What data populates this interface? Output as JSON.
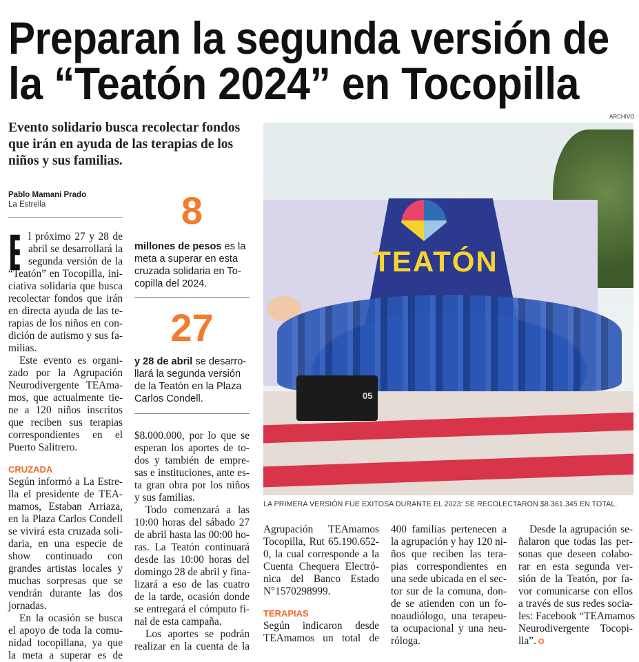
{
  "headline": {
    "line1": "Preparan la segunda versión de",
    "line2": "la “Teatón 2024” en Tocopilla"
  },
  "subtitle": "Evento solidario busca recolectar fondos que irán en ayuda de las terapias de los niños y sus familias.",
  "byline": {
    "author": "Pablo Mamani Prado",
    "outlet": "La Estrella"
  },
  "photo": {
    "credit": "ARCHIVO",
    "banner_text": "TEATÓN",
    "caption": "LA PRIMERA VERSIÓN FUE EXITOSA DURANTE EL 2023: SE RECOLECTARON $8.361.345 EN TOTAL.",
    "speaker_label": "05"
  },
  "facts": [
    {
      "number": "8",
      "bold": "millones de pesos",
      "lines": [
        "es la",
        "meta a superar en esta",
        "cruzada solidaria en To-",
        "copilla del 2024."
      ]
    },
    {
      "number": "27",
      "bold": "y 28 de abril",
      "lines": [
        "se desarro-",
        "llará la segunda versión",
        "de la Teatón en la Plaza",
        "Carlos Condell."
      ]
    }
  ],
  "drop_cap": "E",
  "columns": [
    {
      "blocks": [
        {
          "lines": [
            "l próximo 27 y 28 de",
            "abril se desarrollará la",
            "segunda versión de la",
            "“Teatón” en Tocopilla, ini-",
            "ciativa solidaria que busca",
            "recolectar fondos que irán",
            "en directa ayuda de las te-",
            "rapias de los niños en con-",
            "dición de autismo y sus fa-",
            "milias."
          ],
          "dropcap": true
        },
        {
          "lines": [
            "Este evento es organi-",
            "zado por la Agrupación",
            "Neurodivergente TEAma-",
            "mos, que actualmente tie-",
            "ne a 120 niños inscritos",
            "que reciben sus terapias",
            "correspondientes en el",
            "Puerto Salitrero."
          ],
          "indent": true
        },
        {
          "spacer": true
        },
        {
          "heading": "CRUZADA"
        },
        {
          "lines": [
            "Según informó a La Estre-",
            "lla el presidente de TEA-",
            "mamos, Estaban Arriaza,",
            "en la Plaza Carlos Condell",
            "se vivirá esta cruzada soli-",
            "daria, en una especie de",
            "show continuado con",
            "grandes artistas locales y",
            "muchas sorpresas que se",
            "vendrán durante las dos",
            "jornadas."
          ]
        },
        {
          "lines": [
            "En la ocasión se busca",
            "el apoyo de toda la comu-",
            "nidad tocopillana, ya que",
            "la meta a superar es de"
          ],
          "indent": true,
          "open": true
        }
      ]
    },
    {
      "blocks": [
        {
          "lines": [
            "$8.000.000, por lo que se",
            "esperan los aportes de to-",
            "dos y también de empre-",
            "sas e instituciones, ante es-",
            "ta gran obra por los niños",
            "y sus familias."
          ]
        },
        {
          "lines": [
            "Todo comenzará a las",
            "10:00 horas del sábado 27",
            "de abril hasta las 00:00 ho-",
            "ras. La Teatón continuará",
            "desde las 10:00 horas del",
            "domingo 28 de abril y fina-",
            "lizará a eso de las cuatro",
            "de la tarde, ocasión donde",
            "se entregará el cómputo fi-",
            "nal de esta campaña."
          ],
          "indent": true
        },
        {
          "lines": [
            "Los aportes se podrán",
            "realizar en la cuenta de la"
          ],
          "indent": true,
          "open": true
        }
      ]
    },
    {
      "blocks": [
        {
          "lines": [
            "Agrupación TEAmamos",
            "Tocopilla, Rut 65.190.652-",
            "0, la cual corresponde a la",
            "Cuenta Chequera Electró-",
            "nica del Banco Estado",
            "N°1570298999."
          ]
        },
        {
          "spacer": true
        },
        {
          "heading": "TERAPIAS"
        },
        {
          "lines": [
            "Según indicaron desde",
            "TEAmamos un total de"
          ],
          "open": true
        }
      ]
    },
    {
      "blocks": [
        {
          "lines": [
            "400 familias pertenecen a",
            "la agrupación y hay 120 ni-",
            "ños que reciben las tera-",
            "pias correspondientes en",
            "una sede ubicada en el sec-",
            "tor sur de la comuna, don-",
            "de se atienden con un fo-",
            "noaudiólogo, una terapeu-",
            "ta ocupacional y una neu-",
            "róloga."
          ]
        }
      ]
    },
    {
      "blocks": [
        {
          "lines": [
            "Desde la agrupación se-",
            "ñalaron que todas las per-",
            "sonas que deseen colabo-",
            "rar en esta segunda ver-",
            "sión de la Teatón, por fa-",
            "vor comunicarse con ellos",
            "a través de sus redes socia-",
            "les: Facebook “TEAmamos",
            "Neurodivergente Tocopi-",
            "lla”."
          ],
          "indent": true,
          "end_mark": true
        }
      ]
    }
  ],
  "colors": {
    "accent": "#f47a2d",
    "section": "#ef6a2b",
    "banner_blue": "#2b3a8f",
    "banner_yellow": "#f6d531",
    "shirts": "#2a56b5",
    "stage_red": "#d8344a"
  }
}
